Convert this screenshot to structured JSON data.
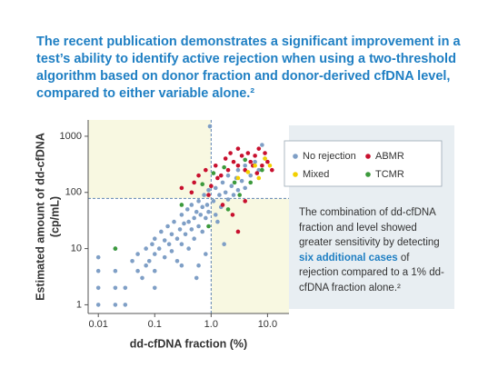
{
  "heading": "The recent publication demonstrates a significant improvement in a test’s ability to identify active rejection when using a two-threshold algorithm based on donor fraction and donor-derived cfDNA level, compared to either variable alone.²",
  "note": [
    "The combination of dd-cfDNA fraction and level showed greater sensitivity by detecting ",
    "six additional cases",
    " of rejection compared to a 1% dd-cfDNA fraction alone.²"
  ],
  "chart_data": {
    "type": "scatter",
    "xlabel": "dd-cfDNA fraction (%)",
    "ylabel": [
      "Estimated amount of dd-cfDNA",
      "(cp/mL)"
    ],
    "xscale": "log",
    "yscale": "log",
    "grid": false,
    "xlim": [
      0.0066,
      24
    ],
    "ylim": [
      0.7,
      1950
    ],
    "xticks": [
      0.01,
      0.1,
      {
        "value": 1,
        "label": "1.0"
      },
      {
        "value": 10,
        "label": "10.0"
      }
    ],
    "yticks": [
      1,
      10,
      100,
      1000
    ],
    "threshold_x": 1,
    "threshold_y": 78,
    "series": [
      {
        "name": "No rejection",
        "color": "#7f9fc6",
        "x": [
          0.01,
          0.01,
          0.01,
          0.01,
          0.02,
          0.02,
          0.02,
          0.03,
          0.03,
          0.04,
          0.05,
          0.05,
          0.06,
          0.07,
          0.07,
          0.08,
          0.09,
          0.1,
          0.1,
          0.1,
          0.12,
          0.13,
          0.15,
          0.15,
          0.17,
          0.18,
          0.2,
          0.2,
          0.22,
          0.25,
          0.25,
          0.28,
          0.3,
          0.3,
          0.33,
          0.35,
          0.38,
          0.4,
          0.4,
          0.45,
          0.45,
          0.5,
          0.5,
          0.55,
          0.6,
          0.6,
          0.65,
          0.7,
          0.7,
          0.75,
          0.8,
          0.8,
          0.85,
          0.9,
          0.9,
          0.95,
          1.1,
          1.2,
          1.2,
          1.4,
          1.5,
          1.6,
          1.8,
          2,
          2,
          2.3,
          2.5,
          2.8,
          3,
          3,
          3.5,
          4,
          4,
          5,
          6,
          7,
          8,
          9,
          0.02,
          0.1,
          0.3,
          0.55,
          1.3,
          1.7,
          0.6
        ],
        "values": [
          7,
          4,
          1,
          2,
          2,
          1,
          4,
          1,
          2,
          6,
          4,
          8,
          3,
          5,
          10,
          6,
          12,
          8,
          4,
          15,
          10,
          20,
          7,
          14,
          25,
          12,
          9,
          18,
          30,
          15,
          6,
          22,
          40,
          12,
          28,
          18,
          50,
          10,
          30,
          22,
          60,
          35,
          15,
          45,
          25,
          70,
          40,
          20,
          55,
          90,
          35,
          8,
          60,
          45,
          110,
          1500,
          70,
          40,
          120,
          90,
          55,
          150,
          100,
          75,
          200,
          130,
          90,
          180,
          110,
          250,
          160,
          120,
          300,
          200,
          350,
          250,
          700,
          400,
          10,
          2,
          5,
          3,
          30,
          12,
          5
        ]
      },
      {
        "name": "ABMR",
        "color": "#c8102e",
        "x": [
          0.3,
          0.5,
          0.6,
          0.8,
          1.0,
          1.2,
          1.5,
          1.8,
          2,
          2.2,
          2.5,
          3,
          3,
          3.5,
          4,
          4.5,
          5,
          5.5,
          6,
          7,
          8,
          9,
          10,
          1.6,
          2.4,
          3,
          4,
          0.9,
          0.45,
          6.5,
          12,
          1.3
        ],
        "values": [
          120,
          150,
          200,
          250,
          130,
          300,
          200,
          400,
          250,
          500,
          350,
          300,
          600,
          450,
          250,
          500,
          350,
          300,
          450,
          600,
          300,
          500,
          350,
          60,
          40,
          20,
          70,
          90,
          100,
          220,
          250,
          180
        ]
      },
      {
        "name": "Mixed",
        "color": "#f2d000",
        "x": [
          3,
          4.5,
          6,
          7,
          9,
          11
        ],
        "values": [
          180,
          230,
          300,
          180,
          400,
          300
        ]
      },
      {
        "name": "TCMR",
        "color": "#3c9a3c",
        "x": [
          0.02,
          0.3,
          0.7,
          1.1,
          1.7,
          2.6,
          3.2,
          4,
          5,
          8,
          0.9,
          2
        ],
        "values": [
          10,
          60,
          140,
          220,
          280,
          150,
          90,
          380,
          150,
          250,
          25,
          50
        ]
      }
    ]
  }
}
